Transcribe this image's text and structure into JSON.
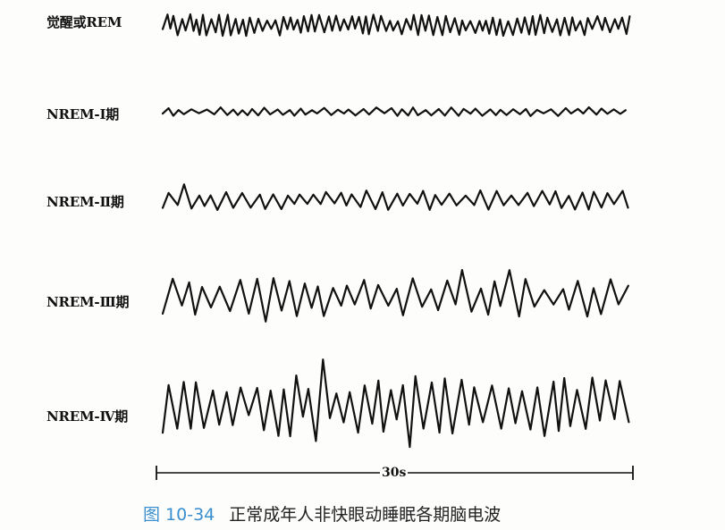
{
  "rows": [
    {
      "label": "觉醒或REM",
      "amplitude": 0.25,
      "frequency": "high",
      "wave": "low-amplitude-fast"
    },
    {
      "label": "NREM-Ⅰ期",
      "amplitude": 0.12,
      "frequency": "medium-high",
      "wave": "low-amplitude"
    },
    {
      "label": "NREM-Ⅱ期",
      "amplitude": 0.35,
      "frequency": "medium",
      "wave": "with-spindles-and-k-complexes"
    },
    {
      "label": "NREM-Ⅲ期",
      "amplitude": 0.6,
      "frequency": "low",
      "wave": "delta-mixed"
    },
    {
      "label": "NREM-Ⅳ期",
      "amplitude": 1.0,
      "frequency": "low",
      "wave": "high-amplitude-delta"
    }
  ],
  "scale_bar": {
    "label": "30s"
  },
  "caption": {
    "number": "图 10-34",
    "title": "正常成年人非快眼动睡眠各期脑电波"
  },
  "colors": {
    "trace": "#111111",
    "caption_number": "#3a8fd0",
    "caption_text": "#222222"
  }
}
